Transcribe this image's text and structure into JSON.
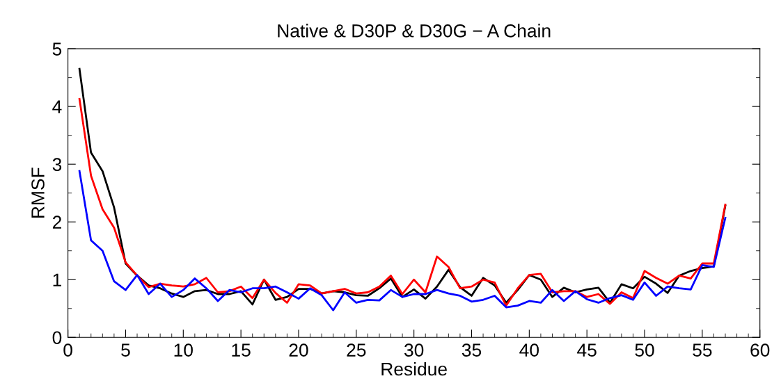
{
  "chart_data": {
    "type": "line",
    "title": "Native & D30P & D30G − A Chain",
    "xlabel": "Residue",
    "ylabel": "RMSF",
    "x": [
      1,
      2,
      3,
      4,
      5,
      6,
      7,
      8,
      9,
      10,
      11,
      12,
      13,
      14,
      15,
      16,
      17,
      18,
      19,
      20,
      21,
      22,
      23,
      24,
      25,
      26,
      27,
      28,
      29,
      30,
      31,
      32,
      33,
      34,
      35,
      36,
      37,
      38,
      39,
      40,
      41,
      42,
      43,
      44,
      45,
      46,
      47,
      48,
      49,
      50,
      51,
      52,
      53,
      54,
      55,
      56,
      57
    ],
    "series": [
      {
        "color": "#000000",
        "values": [
          4.65,
          3.2,
          2.88,
          2.25,
          1.28,
          1.07,
          0.9,
          0.85,
          0.76,
          0.7,
          0.8,
          0.82,
          0.75,
          0.75,
          0.8,
          0.57,
          1.0,
          0.65,
          0.7,
          0.84,
          0.84,
          0.76,
          0.8,
          0.78,
          0.73,
          0.72,
          0.85,
          1.02,
          0.7,
          0.83,
          0.67,
          0.88,
          1.17,
          0.87,
          0.72,
          1.03,
          0.9,
          0.6,
          0.82,
          1.08,
          1.0,
          0.7,
          0.86,
          0.78,
          0.83,
          0.86,
          0.6,
          0.92,
          0.85,
          1.05,
          0.93,
          0.77,
          1.07,
          1.15,
          1.2,
          1.23,
          2.28
        ]
      },
      {
        "color": "#ff0000",
        "values": [
          4.13,
          2.8,
          2.22,
          1.9,
          1.3,
          1.07,
          0.87,
          0.93,
          0.9,
          0.88,
          0.92,
          1.03,
          0.78,
          0.8,
          0.88,
          0.68,
          1.0,
          0.77,
          0.6,
          0.92,
          0.9,
          0.76,
          0.8,
          0.84,
          0.76,
          0.78,
          0.88,
          1.07,
          0.75,
          1.0,
          0.78,
          1.4,
          1.22,
          0.85,
          0.88,
          1.0,
          0.95,
          0.55,
          0.85,
          1.08,
          1.1,
          0.78,
          0.8,
          0.8,
          0.7,
          0.75,
          0.58,
          0.78,
          0.68,
          1.15,
          1.03,
          0.93,
          1.07,
          1.02,
          1.28,
          1.28,
          2.3
        ]
      },
      {
        "color": "#0000ff",
        "values": [
          2.88,
          1.68,
          1.5,
          0.97,
          0.82,
          1.08,
          0.75,
          0.93,
          0.7,
          0.82,
          1.02,
          0.85,
          0.63,
          0.82,
          0.78,
          0.85,
          0.85,
          0.88,
          0.78,
          0.67,
          0.85,
          0.73,
          0.47,
          0.78,
          0.6,
          0.65,
          0.64,
          0.82,
          0.7,
          0.75,
          0.75,
          0.82,
          0.76,
          0.72,
          0.62,
          0.65,
          0.72,
          0.52,
          0.55,
          0.63,
          0.6,
          0.82,
          0.63,
          0.8,
          0.66,
          0.6,
          0.68,
          0.73,
          0.65,
          0.95,
          0.72,
          0.88,
          0.85,
          0.83,
          1.25,
          1.22,
          2.07
        ]
      }
    ],
    "xlim": [
      0,
      60
    ],
    "xticks": [
      0,
      5,
      10,
      15,
      20,
      25,
      30,
      35,
      40,
      45,
      50,
      55,
      60
    ],
    "ylim": [
      0,
      5
    ],
    "yticks": [
      0,
      1,
      2,
      3,
      4,
      5
    ],
    "grid": false,
    "marker": "none",
    "line_style": "solid"
  }
}
